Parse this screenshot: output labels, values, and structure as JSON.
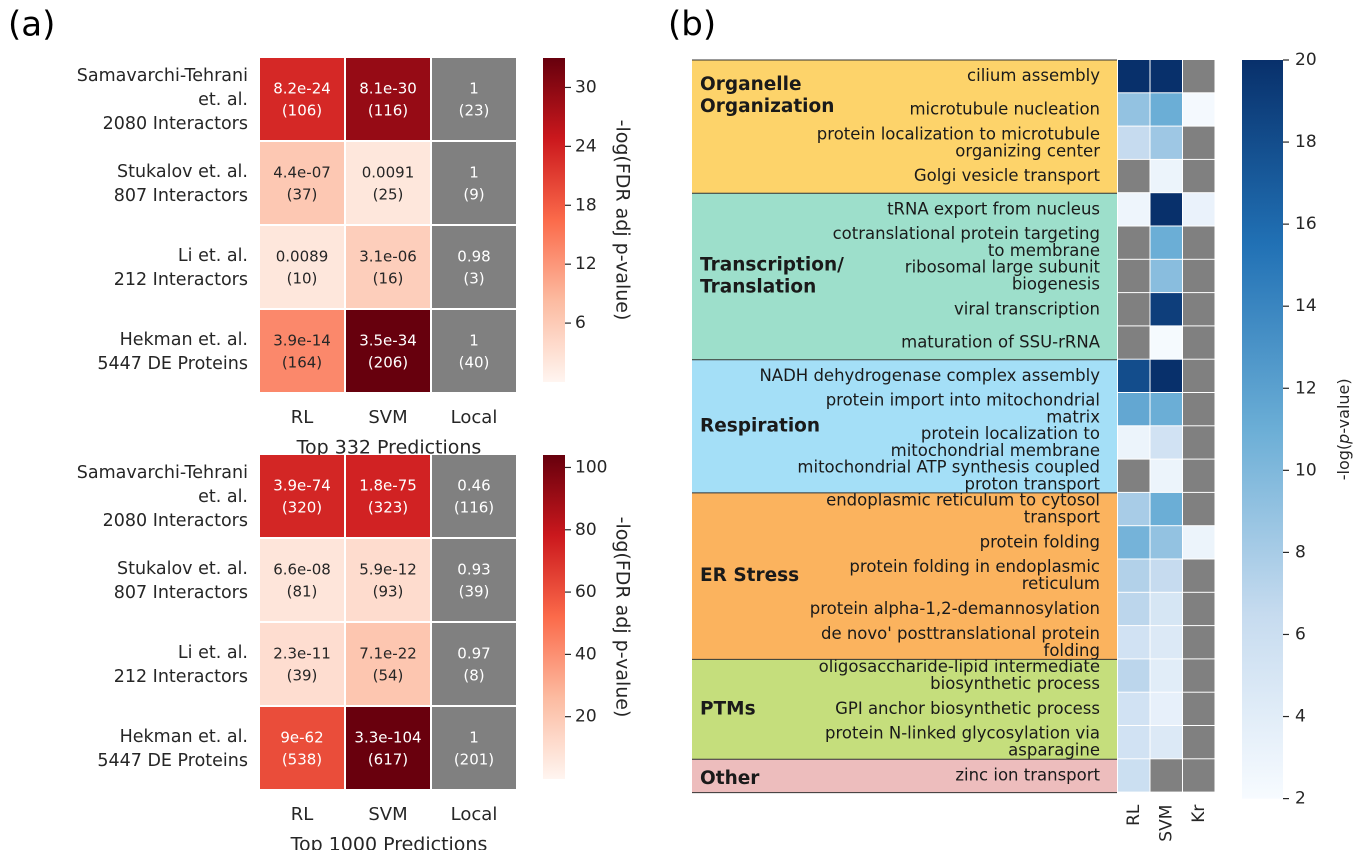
{
  "panel_labels": [
    "(a)",
    "(b)"
  ],
  "chart_data": [
    {
      "type": "heatmap",
      "panel": "(a)",
      "title": "Top 332 Predictions",
      "colorbar_label": "-log(FDR adj p-value)",
      "colorbar_ticks": [
        6,
        12,
        18,
        24,
        30
      ],
      "colorbar_range": [
        0,
        33
      ],
      "colormap": [
        "#fff5f0",
        "#fcbba1",
        "#fb6a4a",
        "#cb181d",
        "#67000d"
      ],
      "columns": [
        "RL",
        "SVM",
        "Local"
      ],
      "rows": [
        {
          "label": [
            "Samavarchi-Tehrani",
            "et. al.",
            "2080 Interactors"
          ],
          "cells": [
            {
              "p": "8.2e-24",
              "n": "(106)",
              "v": 23.09
            },
            {
              "p": "8.1e-30",
              "n": "(116)",
              "v": 29.09
            },
            {
              "p": "1",
              "n": "(23)",
              "v": null
            }
          ]
        },
        {
          "label": [
            "Stukalov et. al.",
            "807 Interactors"
          ],
          "cells": [
            {
              "p": "4.4e-07",
              "n": "(37)",
              "v": 6.36
            },
            {
              "p": "0.0091",
              "n": "(25)",
              "v": 2.04
            },
            {
              "p": "1",
              "n": "(9)",
              "v": null
            }
          ]
        },
        {
          "label": [
            "Li et. al.",
            "212 Interactors"
          ],
          "cells": [
            {
              "p": "0.0089",
              "n": "(10)",
              "v": 2.05
            },
            {
              "p": "3.1e-06",
              "n": "(16)",
              "v": 5.51
            },
            {
              "p": "0.98",
              "n": "(3)",
              "v": null
            }
          ]
        },
        {
          "label": [
            "Hekman et. al.",
            "5447 DE Proteins"
          ],
          "cells": [
            {
              "p": "3.9e-14",
              "n": "(164)",
              "v": 13.41
            },
            {
              "p": "3.5e-34",
              "n": "(206)",
              "v": 33.46
            },
            {
              "p": "1",
              "n": "(40)",
              "v": null
            }
          ]
        }
      ],
      "na_color": "#808080"
    },
    {
      "type": "heatmap",
      "panel": "(a)",
      "title": "Top 1000 Predictions",
      "colorbar_label": "-log(FDR adj p-value)",
      "colorbar_ticks": [
        20,
        40,
        60,
        80,
        100
      ],
      "colorbar_range": [
        0,
        104
      ],
      "colormap": [
        "#fff5f0",
        "#fcbba1",
        "#fb6a4a",
        "#cb181d",
        "#67000d"
      ],
      "columns": [
        "RL",
        "SVM",
        "Local"
      ],
      "rows": [
        {
          "label": [
            "Samavarchi-Tehrani",
            "et. al.",
            "2080 Interactors"
          ],
          "cells": [
            {
              "p": "3.9e-74",
              "n": "(320)",
              "v": 73.41
            },
            {
              "p": "1.8e-75",
              "n": "(323)",
              "v": 74.74
            },
            {
              "p": "0.46",
              "n": "(116)",
              "v": null
            }
          ]
        },
        {
          "label": [
            "Stukalov et. al.",
            "807 Interactors"
          ],
          "cells": [
            {
              "p": "6.6e-08",
              "n": "(81)",
              "v": 7.18
            },
            {
              "p": "5.9e-12",
              "n": "(93)",
              "v": 11.23
            },
            {
              "p": "0.93",
              "n": "(39)",
              "v": null
            }
          ]
        },
        {
          "label": [
            "Li et. al.",
            "212 Interactors"
          ],
          "cells": [
            {
              "p": "2.3e-11",
              "n": "(39)",
              "v": 10.64
            },
            {
              "p": "7.1e-22",
              "n": "(54)",
              "v": 21.15
            },
            {
              "p": "0.97",
              "n": "(8)",
              "v": null
            }
          ]
        },
        {
          "label": [
            "Hekman et. al.",
            "5447 DE Proteins"
          ],
          "cells": [
            {
              "p": "9e-62",
              "n": "(538)",
              "v": 61.05
            },
            {
              "p": "3.3e-104",
              "n": "(617)",
              "v": 103.48
            },
            {
              "p": "1",
              "n": "(201)",
              "v": null
            }
          ]
        }
      ],
      "na_color": "#808080"
    },
    {
      "type": "heatmap",
      "panel": "(b)",
      "colorbar_label_parts": [
        "-log(",
        "p",
        "-value)"
      ],
      "colorbar_ticks": [
        2,
        4,
        6,
        8,
        10,
        12,
        14,
        16,
        18,
        20
      ],
      "colorbar_range": [
        2,
        20
      ],
      "colormap": [
        "#f7fbff",
        "#c6dbef",
        "#6baed6",
        "#2171b5",
        "#08306b"
      ],
      "columns": [
        "RL",
        "SVM",
        "Kr"
      ],
      "na_color": "#808080",
      "groups": [
        {
          "name": [
            "Organelle",
            "Organization"
          ],
          "color": "#fdd36a",
          "terms": [
            {
              "label": [
                "cilium assembly"
              ],
              "values": [
                20,
                20,
                null
              ]
            },
            {
              "label": [
                "microtubule nucleation"
              ],
              "values": [
                9,
                11,
                2.3
              ]
            },
            {
              "label": [
                "protein localization to microtubule",
                "organizing center"
              ],
              "values": [
                6.5,
                8.5,
                null
              ]
            },
            {
              "label": [
                "Golgi vesicle transport"
              ],
              "values": [
                null,
                3,
                null
              ]
            }
          ]
        },
        {
          "name": [
            "Transcription/",
            "Translation"
          ],
          "color": "#9ddfcb",
          "terms": [
            {
              "label": [
                "tRNA export from nucleus"
              ],
              "values": [
                2.8,
                20,
                3.2
              ]
            },
            {
              "label": [
                "cotranslational protein targeting",
                "to membrane"
              ],
              "values": [
                null,
                11,
                null
              ]
            },
            {
              "label": [
                "ribosomal large subunit",
                "biogenesis"
              ],
              "values": [
                null,
                9.5,
                null
              ]
            },
            {
              "label": [
                "viral transcription"
              ],
              "values": [
                null,
                19,
                null
              ]
            },
            {
              "label": [
                "maturation of SSU-rRNA"
              ],
              "values": [
                null,
                2.2,
                null
              ]
            }
          ]
        },
        {
          "name": [
            "Respiration"
          ],
          "color": "#a4dff7",
          "terms": [
            {
              "label": [
                "NADH dehydrogenase complex assembly"
              ],
              "values": [
                18,
                20,
                null
              ]
            },
            {
              "label": [
                "protein import into mitochondrial",
                "matrix"
              ],
              "values": [
                11.5,
                11,
                null
              ]
            },
            {
              "label": [
                "protein localization to",
                "mitochondrial membrane"
              ],
              "values": [
                3,
                5.5,
                null
              ]
            },
            {
              "label": [
                "mitochondrial ATP synthesis coupled",
                "proton transport"
              ],
              "values": [
                null,
                3,
                null
              ]
            }
          ]
        },
        {
          "name": [
            "ER Stress"
          ],
          "color": "#fbb35e",
          "terms": [
            {
              "label": [
                "endoplasmic reticulum to cytosol",
                "transport"
              ],
              "values": [
                8,
                11,
                null
              ]
            },
            {
              "label": [
                "protein folding"
              ],
              "values": [
                10.5,
                9,
                3
              ]
            },
            {
              "label": [
                "protein folding in endoplasmic",
                "reticulum"
              ],
              "values": [
                7.5,
                6.5,
                null
              ]
            },
            {
              "label": [
                "protein alpha-1,2-demannosylation"
              ],
              "values": [
                7,
                5,
                null
              ]
            },
            {
              "label": [
                "de novo' posttranslational protein",
                "folding"
              ],
              "values": [
                5.5,
                4.5,
                null
              ]
            }
          ]
        },
        {
          "name": [
            "PTMs"
          ],
          "color": "#c5de7c",
          "terms": [
            {
              "label": [
                "oligosaccharide-lipid intermediate",
                "biosynthetic process"
              ],
              "values": [
                7,
                4,
                null
              ]
            },
            {
              "label": [
                "GPI anchor biosynthetic process"
              ],
              "values": [
                5.5,
                3.5,
                null
              ]
            },
            {
              "label": [
                "protein N-linked glycosylation via",
                "asparagine"
              ],
              "values": [
                5.5,
                4.5,
                null
              ]
            }
          ]
        },
        {
          "name": [
            "Other"
          ],
          "color": "#edbdbd",
          "terms": [
            {
              "label": [
                "zinc ion transport"
              ],
              "values": [
                6,
                null,
                null
              ]
            }
          ]
        }
      ]
    }
  ]
}
